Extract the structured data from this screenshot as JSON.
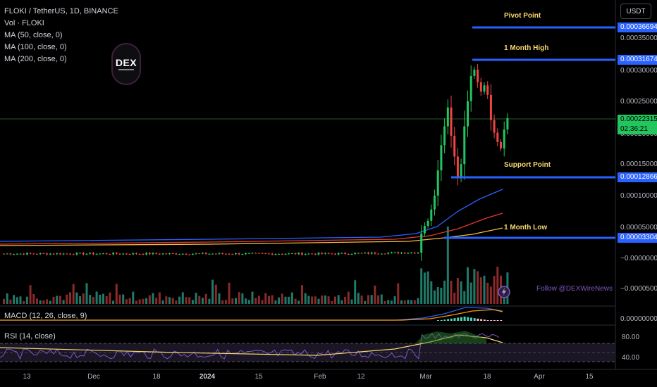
{
  "legend": {
    "symbol": "FLOKI / TetherUS, 1D, BINANCE",
    "vol": "Vol · FLOKI",
    "ma50": "MA (50, close, 0)",
    "ma100": "MA (100, close, 0)",
    "ma200": "MA (200, close, 0)",
    "macd": "MACD (12, 26, close, 9)",
    "rsi": "RSI (14, close)"
  },
  "currency_button": "USDT",
  "logo_text": "DEX",
  "follow_text": "Follow @DEXWireNews",
  "levels": {
    "pivot": {
      "label": "Pivot Point",
      "value": "0.00036694"
    },
    "month_high": {
      "label": "1 Month High",
      "value": "0.00031674"
    },
    "support": {
      "label": "Support Point",
      "value": "0.00012866"
    },
    "month_low": {
      "label": "1 Month Low",
      "value": "0.00003304"
    }
  },
  "last_price": {
    "value": "0.00022315",
    "countdown": "02:36:21"
  },
  "y_axis_ticks": [
    "0.00035000",
    "0.00030000",
    "0.00025000",
    "0.00020000",
    "0.00015000",
    "0.00010000",
    "0.00005000",
    "−0.00000000",
    "−0.00005000"
  ],
  "macd_axis": "0.00000000",
  "rsi_axis": [
    "80.00",
    "40.00"
  ],
  "x_axis_ticks": [
    "13",
    "Dec",
    "18",
    "2024",
    "15",
    "Feb",
    "12",
    "Mar",
    "18",
    "Apr",
    "15"
  ],
  "colors": {
    "up": "#22c55e",
    "down": "#ef4444",
    "level_line": "#2962ff",
    "label": "#f5d76e",
    "ma50": "#2962ff",
    "ma100": "#e53935",
    "ma200": "#f5b942",
    "rsi": "#7e57c2",
    "rsi_ma": "#f5d76e",
    "macd": "#2962ff",
    "signal": "#ff9800"
  },
  "chart_data": {
    "type": "candlestick",
    "price_range": [
      -5e-05,
      0.000365
    ],
    "x": [
      "Nov 13",
      "Dec",
      "Dec 18",
      "2024",
      "Jan 15",
      "Feb",
      "Feb 12",
      "Mar",
      "Mar 18",
      "Apr",
      "Apr 15"
    ],
    "recent_closes": [
      4e-05,
      5.2e-05,
      6e-05,
      7.8e-05,
      0.0001,
      0.00014,
      0.00018,
      0.00021,
      0.00024,
      0.000195,
      0.000162,
      0.00013,
      0.00015,
      0.00021,
      0.00025,
      0.00029,
      0.0003,
      0.00028,
      0.000265,
      0.000275,
      0.00026,
      0.00022,
      0.0002,
      0.000185,
      0.000175,
      0.000205,
      0.000223
    ],
    "macd_label": "MACD (12, 26, close, 9)",
    "rsi_label": "RSI (14, close)",
    "rsi_range": [
      40,
      80
    ]
  }
}
